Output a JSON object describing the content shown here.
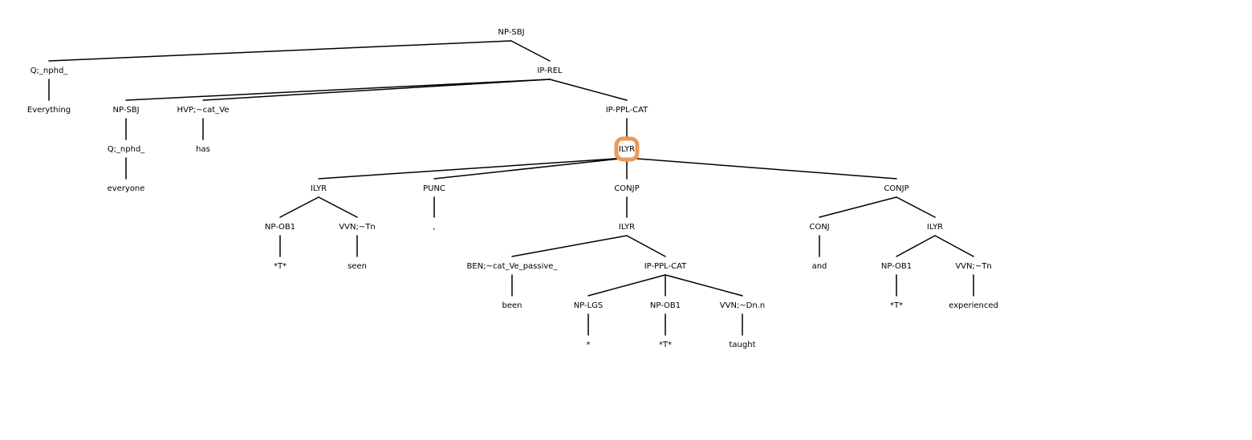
{
  "colors": {
    "highlight": "#ee9a57",
    "edge": "#000000",
    "text": "#000000"
  },
  "tree": {
    "root": "n0",
    "highlighted": "n13",
    "nodes": [
      {
        "id": "n0",
        "label": "NP-SBJ",
        "children": [
          "n1",
          "n3"
        ]
      },
      {
        "id": "n1",
        "label": "Q;_nphd_",
        "children": [
          "n2"
        ]
      },
      {
        "id": "n2",
        "label": "Everything",
        "children": []
      },
      {
        "id": "n3",
        "label": "IP-REL",
        "children": [
          "n4",
          "n7",
          "n9"
        ]
      },
      {
        "id": "n4",
        "label": "NP-SBJ",
        "children": [
          "n5"
        ]
      },
      {
        "id": "n5",
        "label": "Q;_nphd_",
        "children": [
          "n6"
        ]
      },
      {
        "id": "n6",
        "label": "everyone",
        "children": []
      },
      {
        "id": "n7",
        "label": "HVP;~cat_Ve",
        "children": [
          "n8"
        ]
      },
      {
        "id": "n8",
        "label": "has",
        "children": []
      },
      {
        "id": "n9",
        "label": "IP-PPL-CAT",
        "children": [
          "n13"
        ]
      },
      {
        "id": "n13",
        "label": "ILYR",
        "children": [
          "n14",
          "n20",
          "n22",
          "n34"
        ]
      },
      {
        "id": "n14",
        "label": "ILYR",
        "children": [
          "n15",
          "n17"
        ]
      },
      {
        "id": "n15",
        "label": "NP-OB1",
        "children": [
          "n16"
        ]
      },
      {
        "id": "n16",
        "label": "*T*",
        "children": []
      },
      {
        "id": "n17",
        "label": "VVN;~Tn",
        "children": [
          "n18"
        ]
      },
      {
        "id": "n18",
        "label": "seen",
        "children": []
      },
      {
        "id": "n20",
        "label": "PUNC",
        "children": [
          "n21"
        ]
      },
      {
        "id": "n21",
        "label": ",",
        "children": []
      },
      {
        "id": "n22",
        "label": "CONJP",
        "children": [
          "n23"
        ]
      },
      {
        "id": "n23",
        "label": "ILYR",
        "children": [
          "n24",
          "n26"
        ]
      },
      {
        "id": "n24",
        "label": "BEN;~cat_Ve_passive_",
        "children": [
          "n25"
        ]
      },
      {
        "id": "n25",
        "label": "been",
        "children": []
      },
      {
        "id": "n26",
        "label": "IP-PPL-CAT",
        "children": [
          "n27",
          "n29",
          "n31"
        ]
      },
      {
        "id": "n27",
        "label": "NP-LGS",
        "children": [
          "n28"
        ]
      },
      {
        "id": "n28",
        "label": "*",
        "children": []
      },
      {
        "id": "n29",
        "label": "NP-OB1",
        "children": [
          "n30"
        ]
      },
      {
        "id": "n30",
        "label": "*T*",
        "children": []
      },
      {
        "id": "n31",
        "label": "VVN;~Dn.n",
        "children": [
          "n32"
        ]
      },
      {
        "id": "n32",
        "label": "taught",
        "children": []
      },
      {
        "id": "n34",
        "label": "CONJP",
        "children": [
          "n35",
          "n37"
        ]
      },
      {
        "id": "n35",
        "label": "CONJ",
        "children": [
          "n36"
        ]
      },
      {
        "id": "n36",
        "label": "and",
        "children": []
      },
      {
        "id": "n37",
        "label": "ILYR",
        "children": [
          "n38",
          "n40"
        ]
      },
      {
        "id": "n38",
        "label": "NP-OB1",
        "children": [
          "n39"
        ]
      },
      {
        "id": "n39",
        "label": "*T*",
        "children": []
      },
      {
        "id": "n40",
        "label": "VVN;~Tn",
        "children": [
          "n41"
        ]
      },
      {
        "id": "n41",
        "label": "experienced",
        "children": []
      }
    ]
  }
}
